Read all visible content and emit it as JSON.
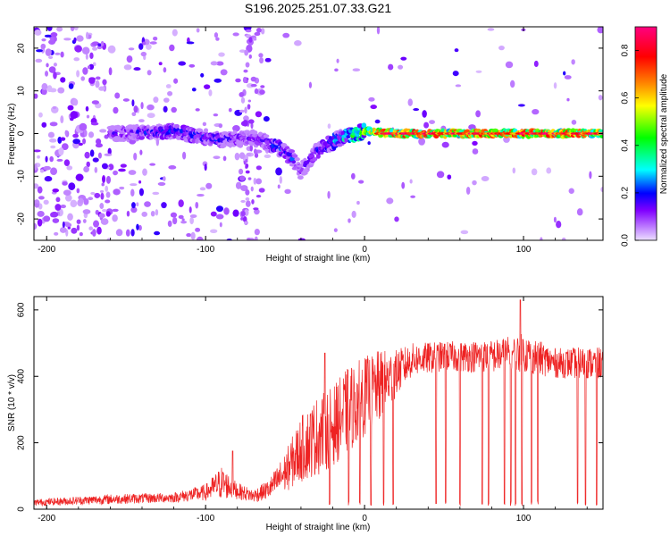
{
  "chart_data": [
    {
      "type": "heatmap",
      "title": "S196.2025.251.07.33.G21",
      "xlabel": "Height of straight line (km)",
      "ylabel": "Frequency (Hz)",
      "xlim": [
        -208,
        150
      ],
      "ylim": [
        -25,
        25
      ],
      "x_ticks": [
        -200,
        -100,
        0,
        100
      ],
      "x_tick_labels": [
        "-200",
        "-100",
        "0",
        "100"
      ],
      "y_ticks": [
        -20,
        -10,
        0,
        10,
        20
      ],
      "y_tick_labels": [
        "-20",
        "-10",
        "0",
        "10",
        "20"
      ],
      "colorbar": {
        "label": "Normalized spectral amplitude",
        "range": [
          0,
          0.9
        ],
        "ticks": [
          0.0,
          0.2,
          0.4,
          0.6,
          0.8
        ],
        "tick_labels": [
          "0.0",
          "0.2",
          "0.4",
          "0.6",
          "0.8"
        ],
        "colors": [
          "#e8c8ff",
          "#8000ff",
          "#0000ff",
          "#00ffff",
          "#00ff00",
          "#ffff00",
          "#ff8000",
          "#ff0000",
          "#ff0080"
        ]
      },
      "ridge": {
        "description_points": [
          {
            "x": -160,
            "freq": 0.0,
            "amp": 0.15
          },
          {
            "x": -120,
            "freq": 0.5,
            "amp": 0.25
          },
          {
            "x": -90,
            "freq": -1.5,
            "amp": 0.22
          },
          {
            "x": -70,
            "freq": -1.0,
            "amp": 0.15
          },
          {
            "x": -55,
            "freq": -3.0,
            "amp": 0.25
          },
          {
            "x": -45,
            "freq": -6.0,
            "amp": 0.22
          },
          {
            "x": -40,
            "freq": -9.0,
            "amp": 0.15
          },
          {
            "x": -30,
            "freq": -4.0,
            "amp": 0.2
          },
          {
            "x": -15,
            "freq": -1.0,
            "amp": 0.35
          },
          {
            "x": 0,
            "freq": 0.5,
            "amp": 0.55
          },
          {
            "x": 20,
            "freq": 0.0,
            "amp": 0.8
          },
          {
            "x": 60,
            "freq": 0.0,
            "amp": 0.75
          },
          {
            "x": 100,
            "freq": 0.0,
            "amp": 0.8
          },
          {
            "x": 150,
            "freq": 0.0,
            "amp": 0.7
          }
        ]
      }
    },
    {
      "type": "line",
      "xlabel": "Height of straight line (km)",
      "ylabel": "SNR (10 * v/v)",
      "xlim": [
        -208,
        150
      ],
      "ylim": [
        0,
        640
      ],
      "x_ticks": [
        -200,
        -100,
        0,
        100
      ],
      "x_tick_labels": [
        "-200",
        "-100",
        "0",
        "100"
      ],
      "y_ticks": [
        0,
        200,
        400,
        600
      ],
      "y_tick_labels": [
        "0",
        "200",
        "400",
        "600"
      ],
      "series": [
        {
          "name": "SNR",
          "color": "#ee2222",
          "envelope_x": [
            -208,
            -160,
            -120,
            -100,
            -90,
            -80,
            -70,
            -60,
            -50,
            -40,
            -30,
            -20,
            -10,
            0,
            10,
            20,
            30,
            50,
            80,
            100,
            120,
            150
          ],
          "envelope_mean": [
            20,
            30,
            35,
            50,
            80,
            55,
            40,
            60,
            110,
            180,
            220,
            250,
            300,
            340,
            370,
            410,
            450,
            460,
            460,
            470,
            440,
            440
          ],
          "envelope_amp": [
            10,
            15,
            15,
            25,
            50,
            25,
            20,
            30,
            60,
            100,
            120,
            120,
            130,
            120,
            110,
            70,
            50,
            45,
            50,
            60,
            45,
            50
          ],
          "dropouts": [
            -22,
            -10,
            -3,
            4,
            12,
            18,
            45,
            51,
            60,
            74,
            78,
            88,
            92,
            95,
            99,
            105,
            109,
            134,
            139,
            146
          ],
          "peaks": [
            {
              "x": -83,
              "y": 175
            },
            {
              "x": -25,
              "y": 470
            },
            {
              "x": 98,
              "y": 630
            }
          ]
        }
      ]
    }
  ]
}
